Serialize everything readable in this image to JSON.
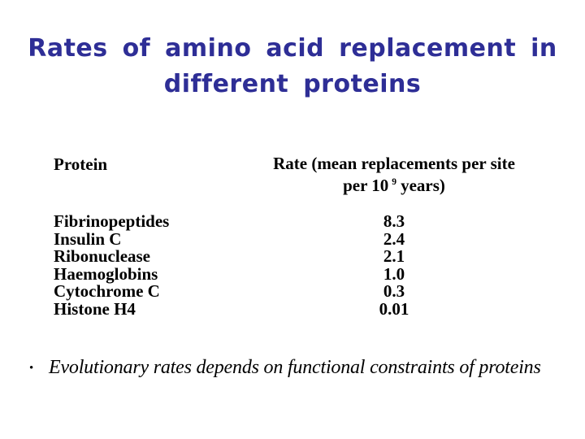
{
  "slide": {
    "title_line1": "Rates of amino acid replacement in",
    "title_line2": "different proteins",
    "title_color": "#2e2e96",
    "background_color": "#ffffff",
    "text_color": "#000000"
  },
  "table": {
    "protein_header": "Protein",
    "rate_header_line1": "Rate (mean replacements per site",
    "rate_header_line2_pre": "per 10",
    "rate_header_sup": "9",
    "rate_header_line2_post": "years)",
    "rows": [
      {
        "protein": "Fibrinopeptides",
        "rate": "8.3"
      },
      {
        "protein": "Insulin C",
        "rate": "2.4"
      },
      {
        "protein": "Ribonuclease",
        "rate": "2.1"
      },
      {
        "protein": "Haemoglobins",
        "rate": "1.0"
      },
      {
        "protein": "Cytochrome C",
        "rate": "0.3"
      },
      {
        "protein": "Histone H4",
        "rate": "0.01"
      }
    ]
  },
  "bullet": {
    "marker": "•",
    "text": "Evolutionary rates depends on functional constraints of proteins"
  }
}
